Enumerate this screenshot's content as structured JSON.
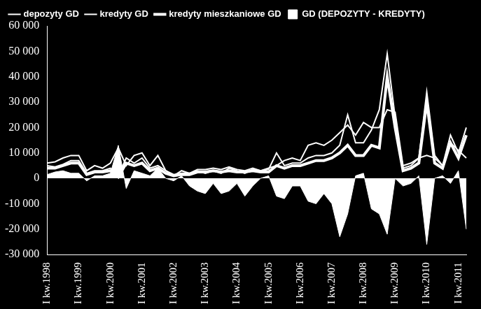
{
  "chart_data": {
    "type": "line",
    "categories": [
      "I kw.1998",
      null,
      null,
      null,
      "I kw.1999",
      null,
      null,
      null,
      "I kw.2000",
      null,
      null,
      null,
      "I kw.2001",
      null,
      null,
      null,
      "I kw.2002",
      null,
      null,
      null,
      "I kw.2003",
      null,
      null,
      null,
      "I kw.2004",
      null,
      null,
      null,
      "I kw.2005",
      null,
      null,
      null,
      "I kw.2006",
      null,
      null,
      null,
      "I kw.2007",
      null,
      null,
      null,
      "I kw.2008",
      null,
      null,
      null,
      "I kw.2009",
      null,
      null,
      null,
      "I kw.2010",
      null,
      null,
      null,
      "I kw.2011",
      null
    ],
    "series": [
      {
        "name": "GD (DEPOZYTY - KREDYTY)",
        "type": "area",
        "color": "#ffffff",
        "values": [
          1500,
          2500,
          3000,
          2000,
          2000,
          -1000,
          1000,
          1000,
          2000,
          13000,
          -4000,
          3000,
          2000,
          1000,
          4000,
          0,
          -1000,
          1000,
          -3000,
          -5000,
          -6000,
          -2000,
          -6000,
          -5000,
          -2000,
          -7000,
          -3000,
          0,
          1000,
          -7000,
          -8000,
          -3000,
          -3000,
          -9000,
          -10000,
          -6000,
          -10000,
          -23000,
          -14000,
          1000,
          2000,
          -12000,
          -14000,
          -22000,
          0,
          -3000,
          -2000,
          1000,
          -26000,
          0,
          1000,
          -2000,
          3000,
          -20000
        ]
      },
      {
        "name": "depozyty GD",
        "type": "line",
        "color": "#ffffff",
        "values": [
          6000,
          6500,
          8000,
          9000,
          9000,
          3000,
          5000,
          4000,
          6000,
          12000,
          5000,
          9000,
          10000,
          5000,
          9000,
          3000,
          1000,
          3000,
          2000,
          3000,
          2000,
          3000,
          2000,
          4000,
          3000,
          2000,
          3500,
          3000,
          4000,
          5000,
          7000,
          8000,
          7000,
          13000,
          14000,
          13000,
          15000,
          18000,
          21000,
          17000,
          22000,
          20000,
          20000,
          27000,
          26000,
          5000,
          6000,
          8000,
          9000,
          8000,
          5000,
          14000,
          11000,
          8000
        ]
      },
      {
        "name": "kredyty GD",
        "type": "line",
        "color": "#ffffff",
        "values": [
          5000,
          4500,
          5500,
          7000,
          7000,
          2000,
          3000,
          3000,
          4000,
          1000,
          8000,
          6000,
          8000,
          4000,
          5000,
          3000,
          1500,
          2000,
          2000,
          3500,
          3500,
          4000,
          3500,
          4500,
          3500,
          3000,
          4000,
          3000,
          3500,
          10000,
          5000,
          6000,
          6000,
          8000,
          9000,
          9000,
          10000,
          13000,
          25000,
          14000,
          14000,
          19000,
          27000,
          49000,
          24000,
          4000,
          5000,
          8000,
          34000,
          9000,
          5000,
          17000,
          10000,
          20000
        ]
      },
      {
        "name": "kredyty mieszkaniowe GD",
        "type": "line",
        "color": "#ffffff",
        "values": [
          4000,
          4000,
          5000,
          6000,
          6000,
          1500,
          2500,
          2500,
          3000,
          500,
          6000,
          5000,
          6000,
          3000,
          4000,
          2000,
          1000,
          1500,
          1500,
          2500,
          2500,
          3000,
          2500,
          3000,
          2500,
          2500,
          3000,
          2500,
          2500,
          5000,
          4000,
          5000,
          5000,
          6000,
          7000,
          7000,
          8000,
          10000,
          13000,
          9000,
          9000,
          13000,
          12000,
          40000,
          20000,
          3000,
          4000,
          6000,
          30000,
          6000,
          4000,
          14000,
          8000,
          17000
        ]
      }
    ],
    "ylim": [
      -30000,
      60000
    ],
    "yticks": [
      {
        "value": -30000,
        "label": "-30 000"
      },
      {
        "value": -20000,
        "label": "-20 000"
      },
      {
        "value": -10000,
        "label": "-10 000"
      },
      0,
      {
        "value": 10000,
        "label": "10 000"
      },
      {
        "value": 20000,
        "label": "20 000"
      },
      {
        "value": 30000,
        "label": "30 000"
      },
      {
        "value": 40000,
        "label": "40 000"
      },
      {
        "value": 50000,
        "label": "50 000"
      },
      {
        "value": 60000,
        "label": "60 000"
      }
    ],
    "grid": false,
    "legend": "top-left"
  }
}
